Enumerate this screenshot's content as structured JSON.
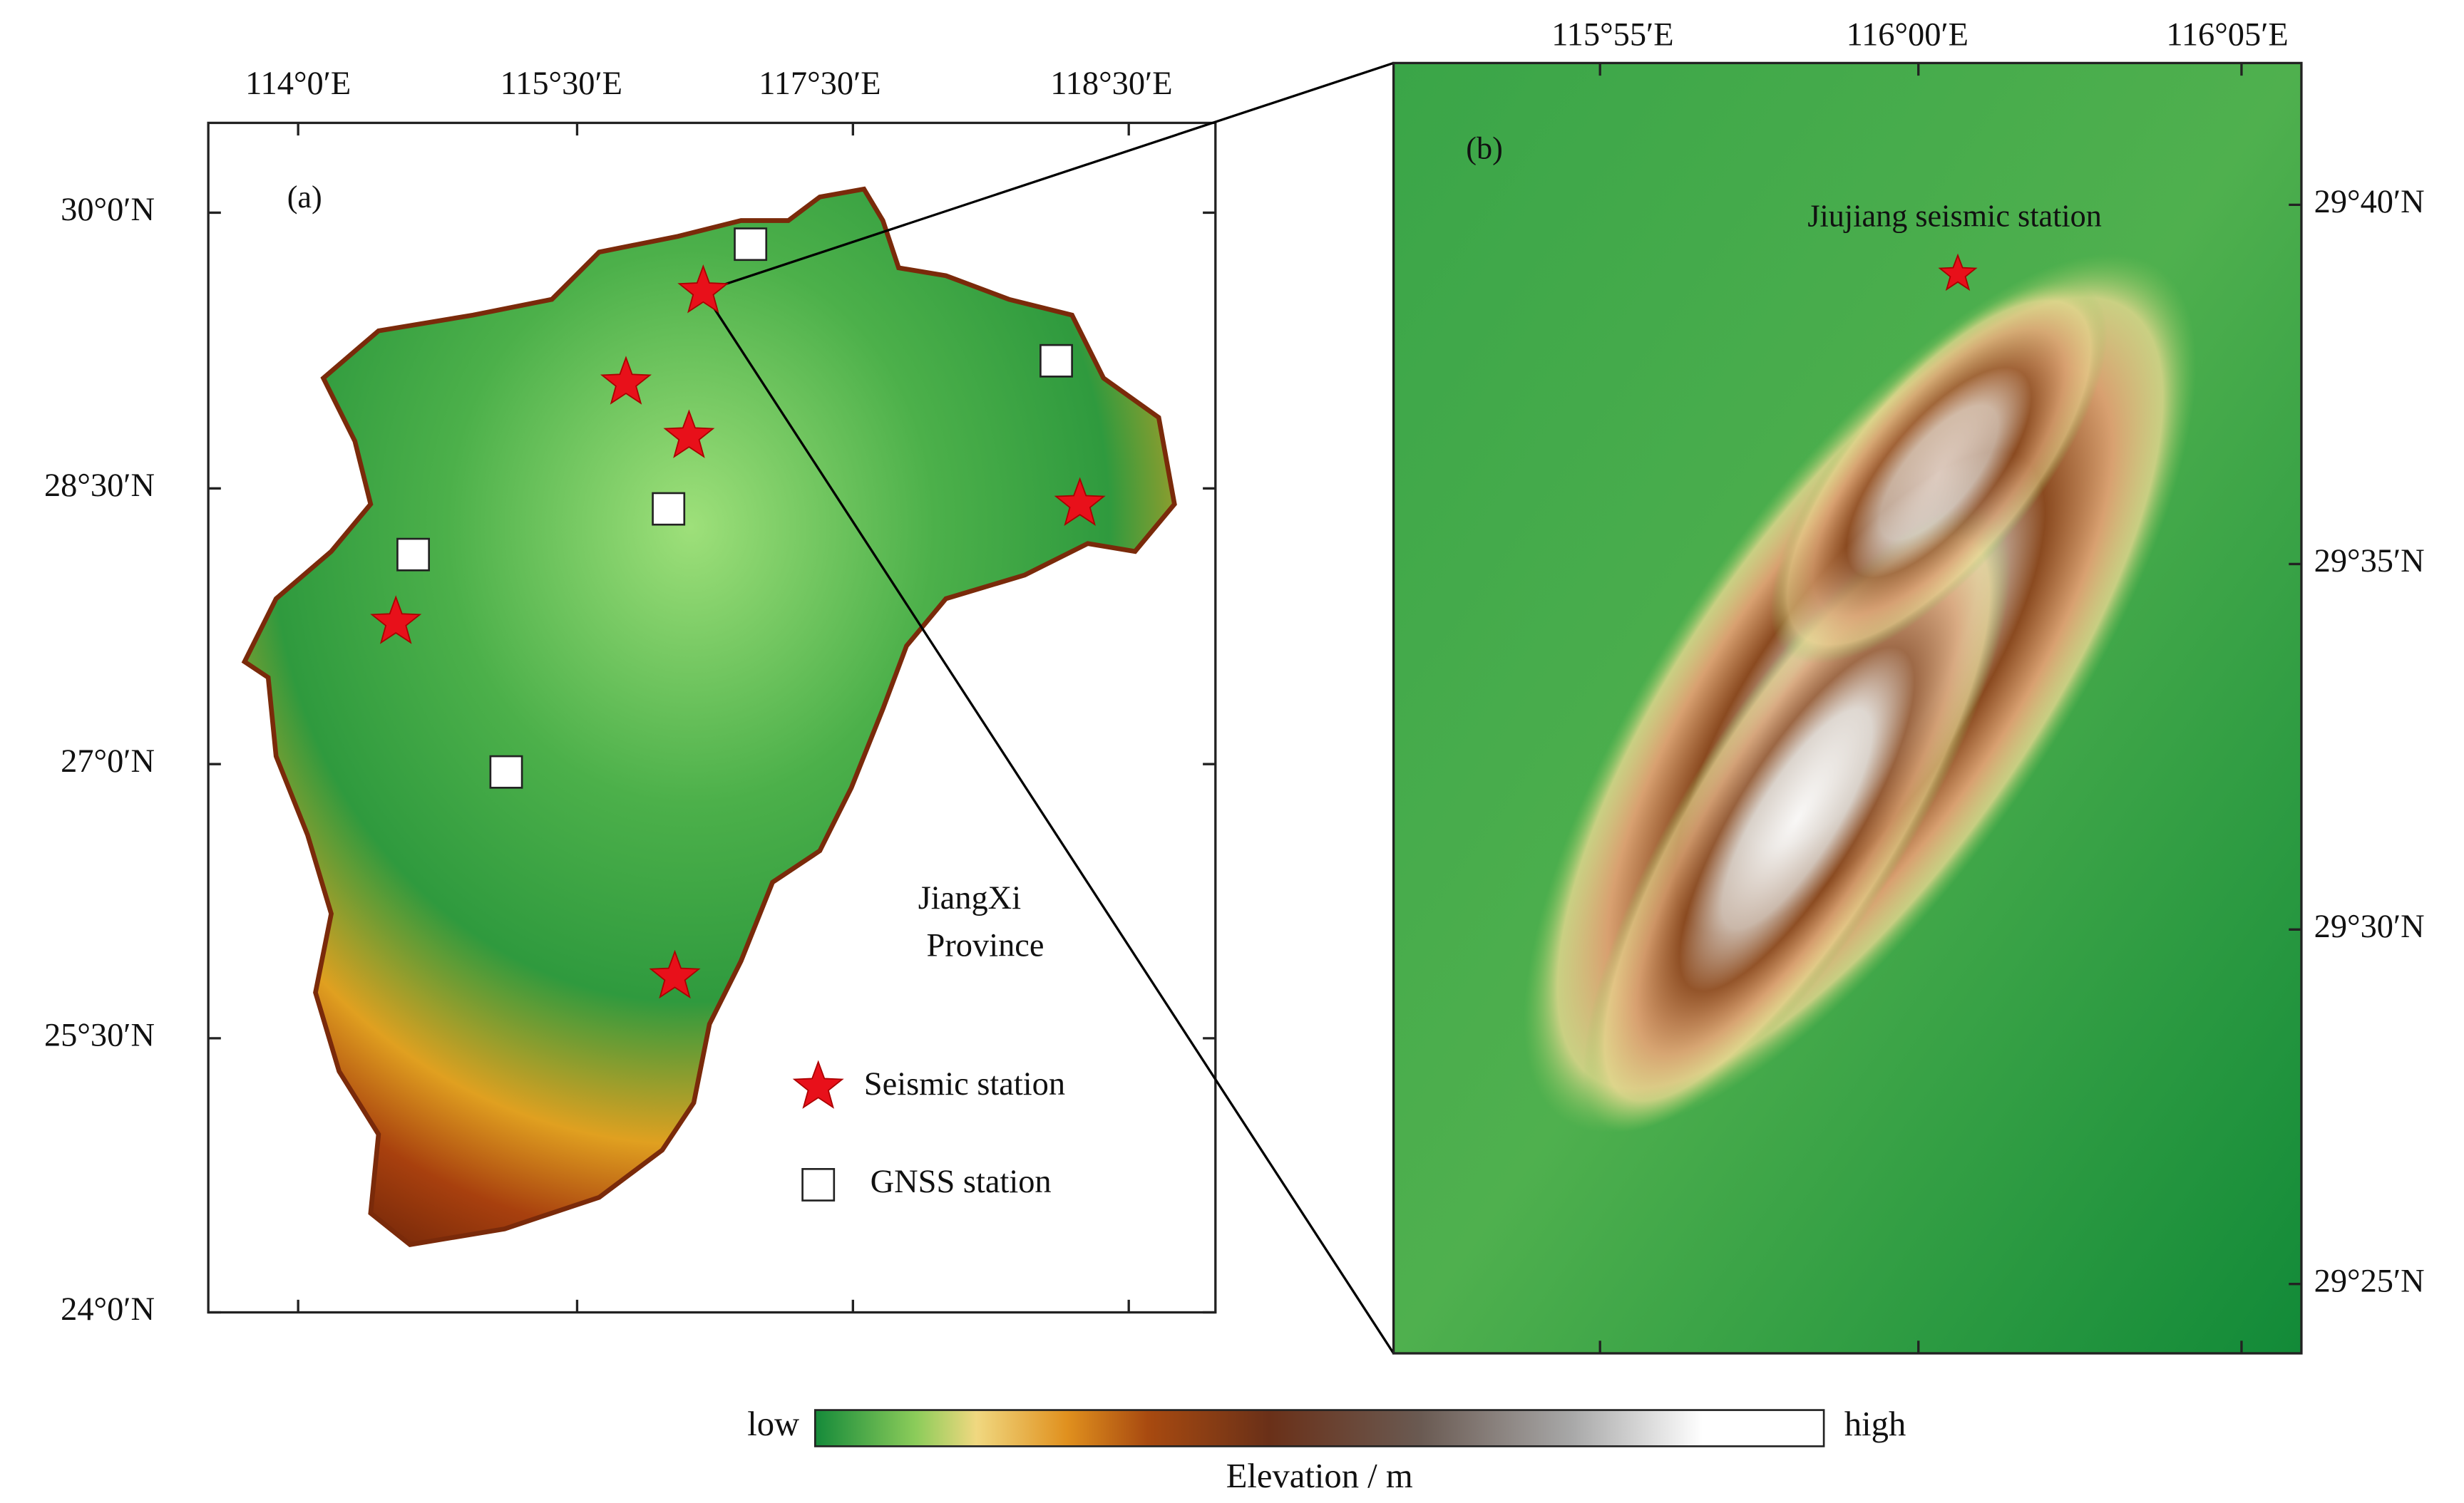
{
  "panel_a": {
    "label": "(a)",
    "x_ticks": [
      "114°0′E",
      "115°30′E",
      "117°30′E",
      "118°30′E"
    ],
    "y_ticks": [
      "30°0′N",
      "28°30′N",
      "27°0′N",
      "25°30′N",
      "24°0′N"
    ],
    "region_label": [
      "JiangXi",
      "Province"
    ],
    "legend": [
      "Seismic station",
      "GNSS station"
    ]
  },
  "panel_b": {
    "label": "(b)",
    "x_ticks": [
      "115°55′E",
      "116°00′E",
      "116°05′E"
    ],
    "y_ticks": [
      "29°40′N",
      "29°35′N",
      "29°30′N",
      "29°25′N"
    ],
    "station_label": "Jiujiang seismic station"
  },
  "colorbar": {
    "low": "low",
    "high": "high",
    "title": "Elevation / m"
  }
}
